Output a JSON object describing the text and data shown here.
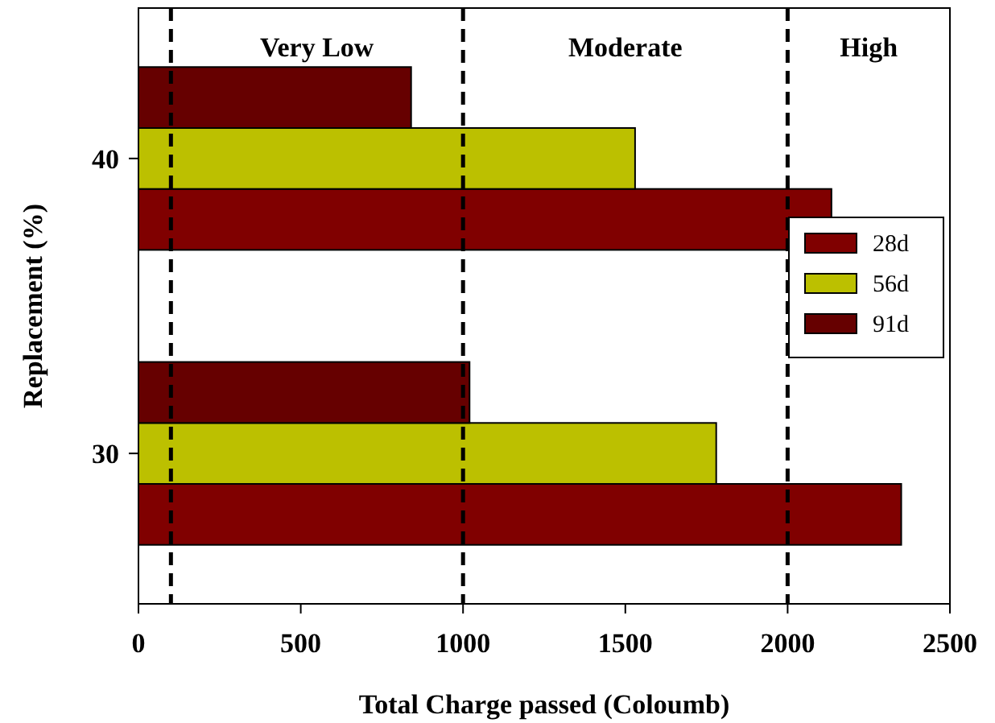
{
  "chart_data": {
    "type": "bar",
    "orientation": "horizontal",
    "xlabel": "Total Charge passed (Coloumb)",
    "ylabel": "Replacement (%)",
    "categories": [
      "40",
      "30"
    ],
    "series": [
      {
        "name": "28d",
        "color": "#800000",
        "values": [
          2135,
          2350
        ]
      },
      {
        "name": "56d",
        "color": "#bcc000",
        "values": [
          1530,
          1780
        ]
      },
      {
        "name": "91d",
        "color": "#660000",
        "values": [
          840,
          1020
        ]
      }
    ],
    "xlim": [
      0,
      2500
    ],
    "xticks": [
      0,
      500,
      1000,
      1500,
      2000,
      2500
    ],
    "ref_lines": [
      {
        "axis": "x",
        "value": 100,
        "line_style": "dashed",
        "color": "#000000"
      },
      {
        "axis": "x",
        "value": 1000,
        "line_style": "dashed",
        "color": "#000000"
      },
      {
        "axis": "x",
        "value": 2000,
        "line_style": "dashed",
        "color": "#000000"
      }
    ],
    "annotations": [
      "Very Low",
      "Moderate",
      "High"
    ],
    "legend": "right",
    "grid": false
  }
}
